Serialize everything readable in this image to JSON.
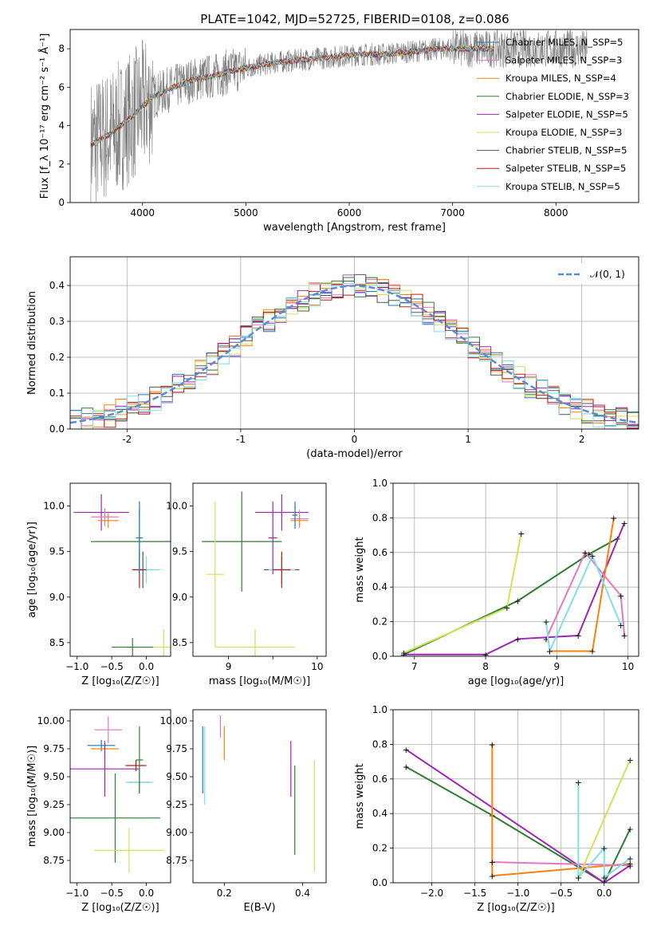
{
  "figure": {
    "title": "PLATE=1042, MJD=52725, FIBERID=0108, z=0.086",
    "colors": {
      "chabrier_miles": "#1f77b4",
      "salpeter_miles": "#e377c2",
      "kroupa_miles": "#ff7f0e",
      "chabrier_elodie": "#2e7d32",
      "salpeter_elodie": "#9c27b0",
      "kroupa_elodie": "#d4e157",
      "chabrier_stelib": "#555555",
      "salpeter_stelib": "#b71c1c",
      "kroupa_stelib": "#80deea",
      "data": "#7f7f7f",
      "normal": "#5b8ad6"
    }
  },
  "chart_data": [
    {
      "type": "line",
      "id": "spectrum",
      "xlabel": "wavelength [Angstrom, rest frame]",
      "ylabel": "Flux [f_λ 10⁻¹⁷ erg cm⁻² s⁻¹ Å⁻¹]",
      "xlim": [
        3300,
        8800
      ],
      "ylim": [
        0,
        9
      ],
      "xticks": [
        4000,
        5000,
        6000,
        7000,
        8000
      ],
      "yticks": [
        0,
        2,
        4,
        6,
        8
      ],
      "legend_position": "right",
      "legend": [
        "Chabrier MILES, N_SSP=5",
        "Salpeter MILES, N_SSP=3",
        "Kroupa MILES, N_SSP=4",
        "Chabrier ELODIE, N_SSP=3",
        "Salpeter ELODIE, N_SSP=5",
        "Kroupa ELODIE, N_SSP=3",
        "Chabrier STELIB, N_SSP=5",
        "Salpeter STELIB, N_SSP=5",
        "Kroupa STELIB, N_SSP=5"
      ],
      "model_x": [
        3500,
        3700,
        3900,
        4100,
        4300,
        4500,
        4700,
        4900,
        5100,
        5300,
        5500,
        5700,
        5900,
        6100,
        6300,
        6500,
        6700,
        6900,
        7100,
        7300
      ],
      "model_y": [
        3.0,
        3.6,
        4.5,
        5.5,
        6.0,
        6.4,
        6.6,
        6.9,
        7.1,
        7.3,
        7.4,
        7.5,
        7.6,
        7.7,
        7.7,
        7.8,
        7.9,
        8.0,
        8.0,
        8.0
      ],
      "data_x_range": [
        3500,
        8300
      ]
    },
    {
      "type": "step",
      "id": "residuals",
      "xlabel": "(data-model)/error",
      "ylabel": "Normed distribution",
      "xlim": [
        -2.5,
        2.5
      ],
      "ylim": [
        0,
        0.48
      ],
      "xticks": [
        -2,
        -1,
        0,
        1,
        2
      ],
      "yticks": [
        0.0,
        0.1,
        0.2,
        0.3,
        0.4
      ],
      "legend": [
        "𝒩(0, 1)"
      ],
      "legend_position": "top-right",
      "grid": true
    },
    {
      "type": "scatter",
      "id": "z-vs-age",
      "xlabel": "Z [log₁₀(Z/Z☉)]",
      "ylabel": "age  [log₁₀(age/yr)]",
      "xlim": [
        -1.1,
        0.35
      ],
      "ylim": [
        8.35,
        10.25
      ],
      "xticks": [
        -1.0,
        -0.5,
        0.0
      ],
      "xticklabels": [
        "−1.0",
        "−0.5",
        "0.0"
      ],
      "yticks": [
        8.5,
        9.0,
        9.5,
        10.0
      ]
    },
    {
      "type": "scatter",
      "id": "mass-vs-age",
      "xlabel": "mass [log₁₀(M/M☉)]",
      "xlim": [
        8.6,
        10.1
      ],
      "ylim": [
        8.35,
        10.25
      ],
      "xticks": [
        9,
        9.5,
        10
      ],
      "xticklabels": [
        "9",
        "",
        "10"
      ],
      "yticks": [
        8.5,
        9.0,
        9.5,
        10.0
      ]
    },
    {
      "type": "line",
      "id": "age-vs-weight",
      "xlabel": "age  [log₁₀(age/yr)]",
      "ylabel": "mass weight",
      "xlim": [
        6.7,
        10.15
      ],
      "ylim": [
        0,
        1
      ],
      "xticks": [
        7,
        8,
        9,
        10
      ],
      "yticks": [
        0.0,
        0.2,
        0.4,
        0.6,
        0.8,
        1.0
      ],
      "grid": true
    },
    {
      "type": "scatter",
      "id": "z-vs-mass",
      "xlabel": "Z [log₁₀(Z/Z☉)]",
      "ylabel": "mass [log₁₀(M/M☉)]",
      "xlim": [
        -1.1,
        0.35
      ],
      "ylim": [
        8.55,
        10.1
      ],
      "xticks": [
        -1.0,
        -0.5,
        0.0
      ],
      "xticklabels": [
        "−1.0",
        "−0.5",
        "0.0"
      ],
      "yticks": [
        8.75,
        9.0,
        9.25,
        9.5,
        9.75,
        10.0
      ]
    },
    {
      "type": "scatter",
      "id": "ebv-vs-mass",
      "xlabel": "E(B-V)",
      "xlim": [
        0.12,
        0.46
      ],
      "ylim": [
        8.55,
        10.1
      ],
      "xticks": [
        0.2,
        0.4
      ],
      "yticks": [
        8.75,
        9.0,
        9.25,
        9.5,
        9.75,
        10.0
      ]
    },
    {
      "type": "line",
      "id": "z-vs-weight",
      "xlabel": "Z [log₁₀(Z/Z☉)]",
      "ylabel": "mass weight",
      "xlim": [
        -2.45,
        0.4
      ],
      "ylim": [
        0,
        1
      ],
      "xticks": [
        -2.0,
        -1.5,
        -1.0,
        -0.5,
        0.0
      ],
      "xticklabels": [
        "−2.0",
        "−1.5",
        "−1.0",
        "−0.5",
        "0.0"
      ],
      "yticks": [
        0.0,
        0.2,
        0.4,
        0.6,
        0.8,
        1.0
      ],
      "grid": true
    }
  ]
}
